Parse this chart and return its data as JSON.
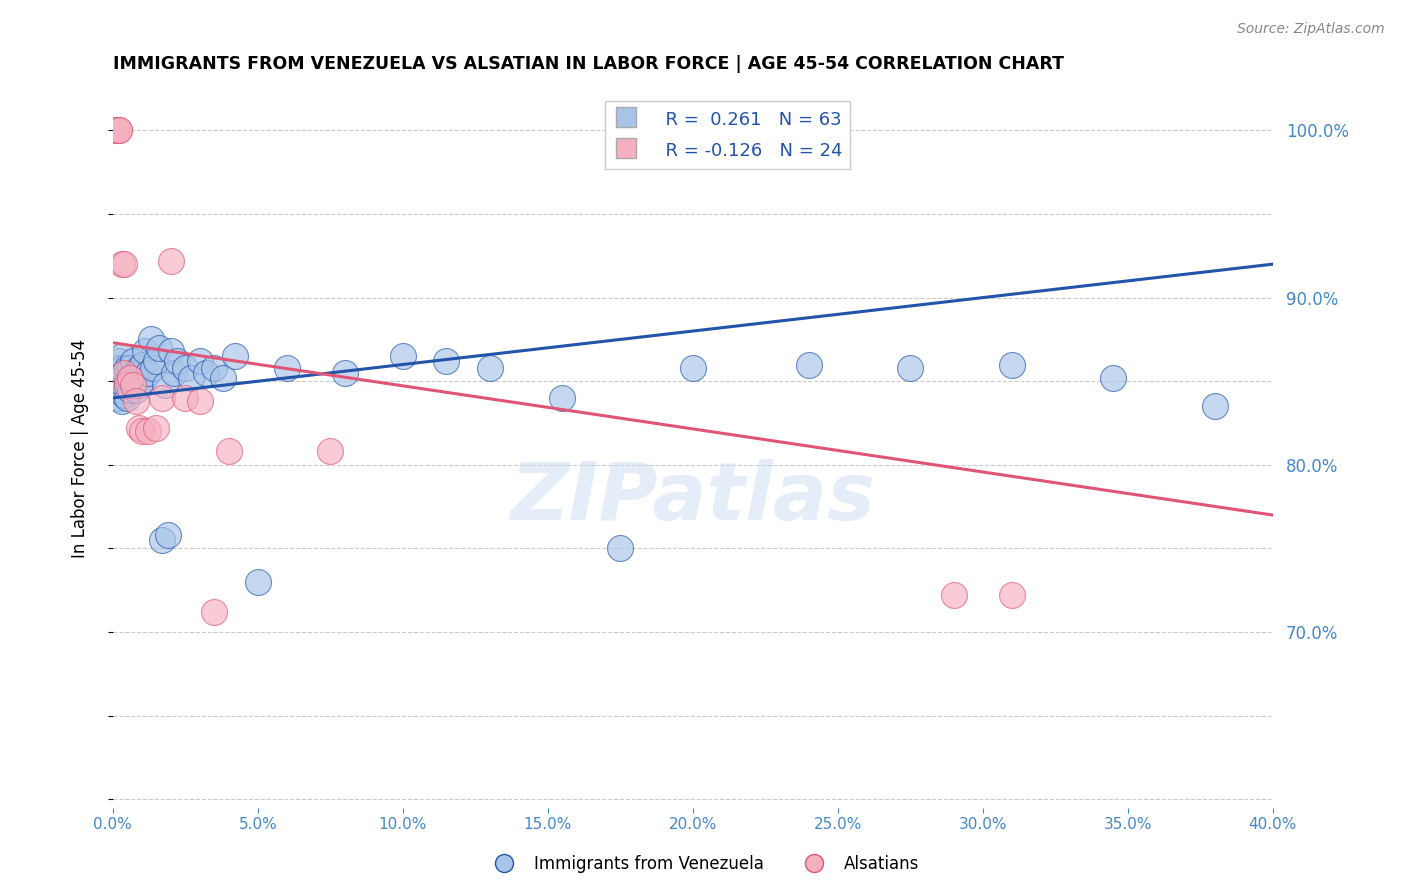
{
  "title": "IMMIGRANTS FROM VENEZUELA VS ALSATIAN IN LABOR FORCE | AGE 45-54 CORRELATION CHART",
  "source": "Source: ZipAtlas.com",
  "ylabel": "In Labor Force | Age 45-54",
  "legend_label1": "Immigrants from Venezuela",
  "legend_label2": "Alsatians",
  "r1": 0.261,
  "n1": 63,
  "r2": -0.126,
  "n2": 24,
  "color_blue": "#a8c4e8",
  "color_pink": "#f5b0c0",
  "line_color_blue": "#2255aa",
  "line_color_pink": "#e05575",
  "axis_label_color": "#4488cc",
  "watermark": "ZIPatlas",
  "xmin": 0.0,
  "xmax": 0.4,
  "ymin": 0.595,
  "ymax": 1.025,
  "xticks": [
    0.0,
    0.05,
    0.1,
    0.15,
    0.2,
    0.25,
    0.3,
    0.35,
    0.4
  ],
  "yticks_right": [
    0.7,
    0.8,
    0.9,
    1.0
  ],
  "blue_x": [
    0.001,
    0.001,
    0.001,
    0.002,
    0.002,
    0.002,
    0.002,
    0.003,
    0.003,
    0.003,
    0.003,
    0.003,
    0.004,
    0.004,
    0.004,
    0.005,
    0.005,
    0.005,
    0.006,
    0.006,
    0.006,
    0.007,
    0.007,
    0.007,
    0.008,
    0.008,
    0.009,
    0.009,
    0.01,
    0.01,
    0.011,
    0.012,
    0.013,
    0.014,
    0.015,
    0.016,
    0.017,
    0.018,
    0.019,
    0.02,
    0.021,
    0.022,
    0.025,
    0.027,
    0.03,
    0.032,
    0.035,
    0.038,
    0.042,
    0.05,
    0.06,
    0.08,
    0.1,
    0.115,
    0.13,
    0.155,
    0.175,
    0.2,
    0.24,
    0.275,
    0.31,
    0.345,
    0.38
  ],
  "blue_y": [
    0.845,
    0.852,
    0.858,
    0.84,
    0.848,
    0.855,
    0.862,
    0.838,
    0.845,
    0.852,
    0.858,
    0.865,
    0.842,
    0.848,
    0.855,
    0.84,
    0.85,
    0.858,
    0.845,
    0.852,
    0.858,
    0.848,
    0.855,
    0.862,
    0.845,
    0.855,
    0.848,
    0.858,
    0.85,
    0.86,
    0.868,
    0.855,
    0.875,
    0.858,
    0.862,
    0.87,
    0.755,
    0.848,
    0.758,
    0.868,
    0.855,
    0.862,
    0.858,
    0.852,
    0.862,
    0.855,
    0.858,
    0.852,
    0.865,
    0.73,
    0.858,
    0.855,
    0.865,
    0.862,
    0.858,
    0.84,
    0.75,
    0.858,
    0.86,
    0.858,
    0.86,
    0.852,
    0.835
  ],
  "pink_x": [
    0.001,
    0.001,
    0.002,
    0.002,
    0.003,
    0.004,
    0.004,
    0.005,
    0.006,
    0.007,
    0.008,
    0.009,
    0.01,
    0.012,
    0.015,
    0.017,
    0.02,
    0.025,
    0.03,
    0.035,
    0.04,
    0.075,
    0.29,
    0.31
  ],
  "pink_y": [
    1.0,
    1.0,
    1.0,
    1.0,
    0.92,
    0.92,
    0.855,
    0.848,
    0.852,
    0.848,
    0.838,
    0.822,
    0.82,
    0.82,
    0.822,
    0.84,
    0.922,
    0.84,
    0.838,
    0.712,
    0.808,
    0.808,
    0.722,
    0.722
  ],
  "blue_trend_x": [
    0.0,
    0.4
  ],
  "blue_trend_y": [
    0.84,
    0.92
  ],
  "pink_trend_x": [
    0.0,
    0.4
  ],
  "pink_trend_y": [
    0.873,
    0.77
  ]
}
